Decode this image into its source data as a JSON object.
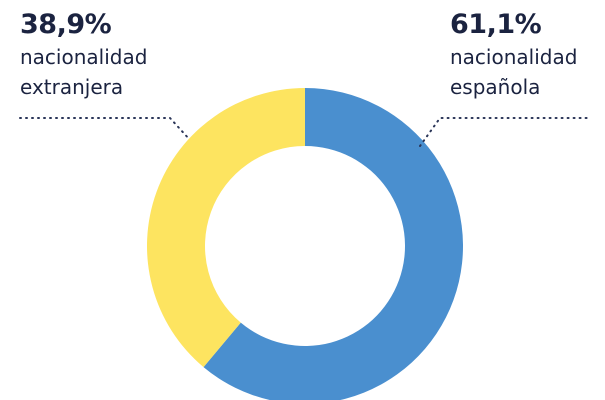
{
  "chart_data": {
    "type": "donut",
    "categories": [
      "nacionalidad española",
      "nacionalidad extranjera"
    ],
    "values": [
      61.1,
      38.9
    ],
    "value_labels": [
      "61,1%",
      "38,9%"
    ],
    "colors": [
      "#4a8fcf",
      "#fde460"
    ]
  }
}
